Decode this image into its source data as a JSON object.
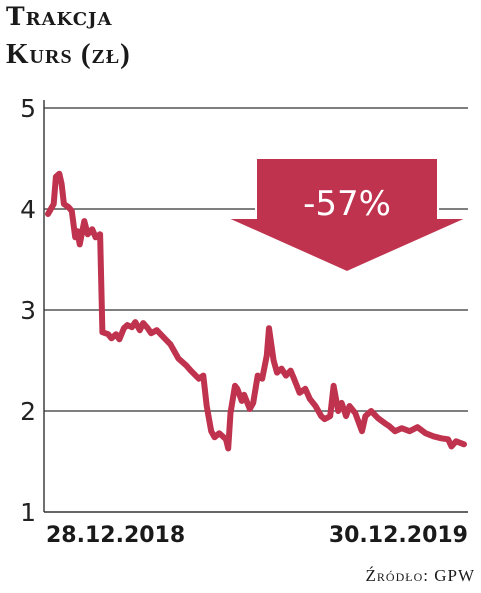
{
  "header": {
    "title": "Trakcja",
    "subtitle": "Kurs (zł)"
  },
  "source": "Źródło: GPW",
  "chart_data": {
    "type": "line",
    "title": "Trakcja",
    "ylabel": "Kurs (zł)",
    "ylim": [
      1,
      5
    ],
    "yticks": [
      1,
      2,
      3,
      4,
      5
    ],
    "grid": true,
    "x_tick_labels": [
      "28.12.2018",
      "30.12.2019"
    ],
    "x_range": [
      "2018-12-28",
      "2019-12-30"
    ],
    "line_color": "#c0334f",
    "series": [
      {
        "points": [
          [
            "2018-12-28",
            3.95
          ],
          [
            "2019-01-02",
            4.05
          ],
          [
            "2019-01-04",
            4.32
          ],
          [
            "2019-01-07",
            4.35
          ],
          [
            "2019-01-09",
            4.25
          ],
          [
            "2019-01-11",
            4.05
          ],
          [
            "2019-01-15",
            4.02
          ],
          [
            "2019-01-18",
            3.98
          ],
          [
            "2019-01-21",
            3.72
          ],
          [
            "2019-01-23",
            3.78
          ],
          [
            "2019-01-25",
            3.65
          ],
          [
            "2019-01-29",
            3.88
          ],
          [
            "2019-02-01",
            3.75
          ],
          [
            "2019-02-05",
            3.8
          ],
          [
            "2019-02-08",
            3.72
          ],
          [
            "2019-02-12",
            3.75
          ],
          [
            "2019-02-14",
            2.78
          ],
          [
            "2019-02-19",
            2.76
          ],
          [
            "2019-02-22",
            2.72
          ],
          [
            "2019-02-26",
            2.76
          ],
          [
            "2019-03-01",
            2.71
          ],
          [
            "2019-03-05",
            2.82
          ],
          [
            "2019-03-08",
            2.85
          ],
          [
            "2019-03-12",
            2.83
          ],
          [
            "2019-03-15",
            2.88
          ],
          [
            "2019-03-19",
            2.8
          ],
          [
            "2019-03-22",
            2.87
          ],
          [
            "2019-03-26",
            2.82
          ],
          [
            "2019-03-29",
            2.77
          ],
          [
            "2019-04-03",
            2.8
          ],
          [
            "2019-04-09",
            2.73
          ],
          [
            "2019-04-15",
            2.66
          ],
          [
            "2019-04-22",
            2.52
          ],
          [
            "2019-04-29",
            2.45
          ],
          [
            "2019-05-03",
            2.4
          ],
          [
            "2019-05-10",
            2.32
          ],
          [
            "2019-05-14",
            2.35
          ],
          [
            "2019-05-17",
            2.05
          ],
          [
            "2019-05-21",
            1.8
          ],
          [
            "2019-05-24",
            1.74
          ],
          [
            "2019-05-28",
            1.78
          ],
          [
            "2019-06-03",
            1.72
          ],
          [
            "2019-06-05",
            1.63
          ],
          [
            "2019-06-07",
            1.98
          ],
          [
            "2019-06-11",
            2.25
          ],
          [
            "2019-06-13",
            2.22
          ],
          [
            "2019-06-17",
            2.1
          ],
          [
            "2019-06-19",
            2.16
          ],
          [
            "2019-06-24",
            2.02
          ],
          [
            "2019-06-27",
            2.08
          ],
          [
            "2019-07-01",
            2.35
          ],
          [
            "2019-07-05",
            2.32
          ],
          [
            "2019-07-09",
            2.55
          ],
          [
            "2019-07-11",
            2.82
          ],
          [
            "2019-07-15",
            2.5
          ],
          [
            "2019-07-18",
            2.38
          ],
          [
            "2019-07-22",
            2.42
          ],
          [
            "2019-07-26",
            2.35
          ],
          [
            "2019-07-30",
            2.4
          ],
          [
            "2019-08-02",
            2.32
          ],
          [
            "2019-08-07",
            2.18
          ],
          [
            "2019-08-12",
            2.22
          ],
          [
            "2019-08-16",
            2.12
          ],
          [
            "2019-08-21",
            2.05
          ],
          [
            "2019-08-26",
            1.95
          ],
          [
            "2019-08-29",
            1.92
          ],
          [
            "2019-09-03",
            1.95
          ],
          [
            "2019-09-06",
            2.25
          ],
          [
            "2019-09-10",
            2.0
          ],
          [
            "2019-09-13",
            2.08
          ],
          [
            "2019-09-17",
            1.95
          ],
          [
            "2019-09-20",
            2.05
          ],
          [
            "2019-09-25",
            1.98
          ],
          [
            "2019-10-01",
            1.8
          ],
          [
            "2019-10-04",
            1.95
          ],
          [
            "2019-10-09",
            2.0
          ],
          [
            "2019-10-15",
            1.93
          ],
          [
            "2019-10-21",
            1.88
          ],
          [
            "2019-10-25",
            1.85
          ],
          [
            "2019-10-30",
            1.8
          ],
          [
            "2019-11-05",
            1.83
          ],
          [
            "2019-11-12",
            1.8
          ],
          [
            "2019-11-19",
            1.84
          ],
          [
            "2019-11-26",
            1.78
          ],
          [
            "2019-12-03",
            1.75
          ],
          [
            "2019-12-10",
            1.73
          ],
          [
            "2019-12-16",
            1.72
          ],
          [
            "2019-12-19",
            1.65
          ],
          [
            "2019-12-23",
            1.7
          ],
          [
            "2019-12-30",
            1.67
          ]
        ]
      }
    ],
    "annotation": {
      "text": "-57%",
      "shape": "down-arrow",
      "color": "#c0334f"
    }
  }
}
